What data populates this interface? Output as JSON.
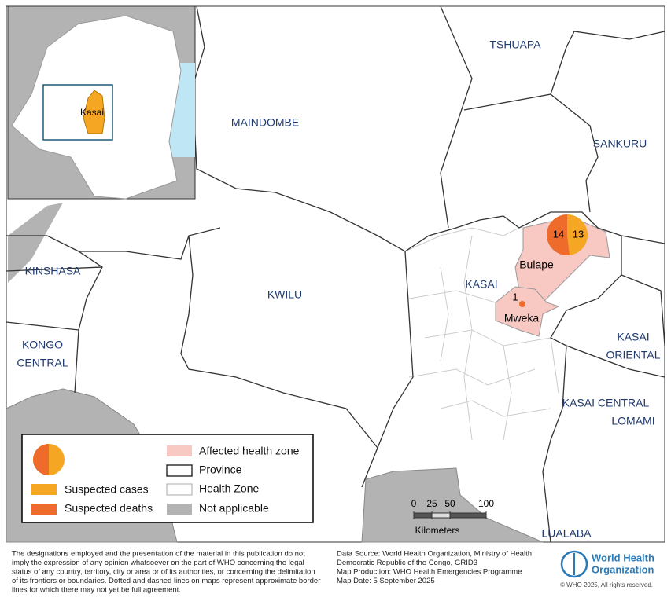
{
  "map": {
    "provinces": [
      {
        "lines": [
          "TSHUAPA"
        ]
      },
      {
        "lines": [
          "MAINDOMBE"
        ]
      },
      {
        "lines": [
          "SANKURU"
        ]
      },
      {
        "lines": [
          "KINSHASA"
        ]
      },
      {
        "lines": [
          "KWILU"
        ]
      },
      {
        "lines": [
          "KASAI"
        ]
      },
      {
        "lines": [
          "KASAI",
          "ORIENTAL"
        ]
      },
      {
        "lines": [
          "KONGO",
          "CENTRAL"
        ]
      },
      {
        "lines": [
          "KASAI CENTRAL"
        ]
      },
      {
        "lines": [
          "LOMAMI"
        ]
      },
      {
        "lines": [
          "LUALABA"
        ]
      }
    ],
    "health_zones": [
      {
        "label": "Bulape",
        "suspected_deaths": 14,
        "suspected_cases": 13
      },
      {
        "label": "Mweka",
        "suspected_deaths": 1
      }
    ],
    "inset_label": "Kasai"
  },
  "legend": {
    "cases": "Suspected cases",
    "deaths": "Suspected deaths",
    "affected": "Affected health zone",
    "province": "Province",
    "health_zone": "Health Zone",
    "not_applicable": "Not applicable"
  },
  "scale_bar": {
    "ticks": [
      0,
      25,
      50,
      100
    ],
    "unit": "Kilometers"
  },
  "footer": {
    "disclaimer": [
      "The designations employed and the presentation of the material in this publication do not",
      "imply the expression of any opinion whatsoever on the part of WHO concerning the legal",
      "status of any country, territory, city or area or of its authorities, or concerning the delimitation",
      "of its frontiers or boundaries. Dotted and dashed lines on maps represent approximate border",
      "lines for which there may not yet be full agreement."
    ],
    "source": [
      "Data Source: World Health Organization, Ministry of Health",
      "Democratic Republic of the Congo, GRID3",
      "Map Production: WHO Health Emergencies Programme",
      "Map Date:  5 September 2025"
    ],
    "org": [
      "World Health",
      "Organization"
    ],
    "copyright": "© WHO  2025,  All rights reserved."
  }
}
